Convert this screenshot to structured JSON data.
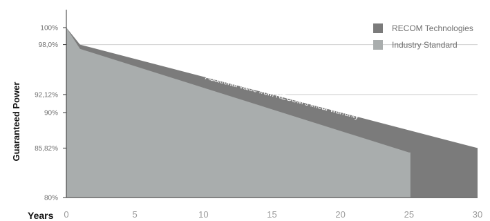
{
  "chart_data": {
    "type": "area",
    "xlabel": "Years",
    "ylabel": "Guaranteed Power",
    "xlim": [
      0,
      30
    ],
    "ylim": [
      80,
      100
    ],
    "x_ticks": [
      0,
      5,
      10,
      15,
      20,
      25,
      30
    ],
    "y_ticks": [
      {
        "value": 100,
        "label": "100%"
      },
      {
        "value": 98.0,
        "label": "98,0%"
      },
      {
        "value": 92.12,
        "label": "92,12%"
      },
      {
        "value": 90,
        "label": "90%"
      },
      {
        "value": 85.82,
        "label": "85,82%"
      },
      {
        "value": 80,
        "label": "80%"
      }
    ],
    "gridlines_y": [
      98.0,
      92.12,
      85.82,
      80
    ],
    "legend_position": "top-right",
    "series": [
      {
        "name": "RECOM Technologies",
        "color": "#7b7b7b",
        "points": [
          [
            0,
            100
          ],
          [
            1,
            98.0
          ],
          [
            30,
            85.82
          ]
        ]
      },
      {
        "name": "Industry Standard",
        "color": "#a9adad",
        "points": [
          [
            0,
            100
          ],
          [
            1,
            97.5
          ],
          [
            25,
            85.3
          ]
        ]
      }
    ],
    "annotation": {
      "text": "Additional value from RECOM's linear warranty",
      "x": 15.7,
      "y": 91.6
    }
  }
}
